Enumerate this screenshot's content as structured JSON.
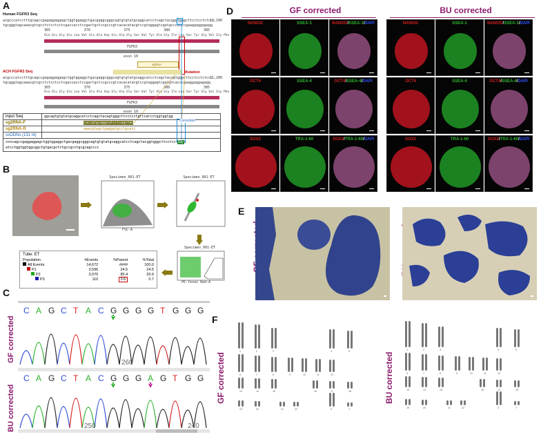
{
  "panels": {
    "A": "A",
    "B": "B",
    "C": "C",
    "D": "D",
    "E": "E",
    "F": "F"
  },
  "panelA": {
    "human_title": "Human FGFR3 Seq",
    "ach_title": "ACH FGFR3 Seq",
    "seq_line1": "acgcccatcctttgcagccgagaggaggagctggtggaggctgacgaggcgggcagtgtgtatgcaggcatcctcagctacgggtgggcttcctcctctccc",
    "seq_line2": "tgcgggtagcaaacgtcgcctctcctcctcgaccacctccgactgctccgcccgtcacacatacgtccgtaggagtcgatgcccacccgaaggaggagagg",
    "seq_line3": "acgcccatcctttgcagccgagaggaggagctggtggaggctgacgaggcgggcagtgtgtatgcaggcatcctcagctacagtgggcttcctcctctccc",
    "seq_line4": "tgcgggtagcaaacgtcgcctctcctcctcgaccacctccgactgctccgcccgtcacacatacgtccgtaggagtcgatgtcacccgaaggaggagagg",
    "aa_line": "Ala Glu Gly Glu Leu Val Glu Ala Asp Glu Ala Gly Ser Val Tyr Ala Gly Ile Leu Ser Tyr Gly Val Gly Phe Phe Leu Phe",
    "pos1": "365",
    "pos2": "370",
    "pos3": "375",
    "pos4": "380",
    "pos5": "385",
    "coord1": "11,100",
    "coord2": "11,200",
    "fgfr3": "FGFR3",
    "exon": "exon 10",
    "mutation": "Mutation",
    "sgrna": "sgRNA",
    "correction": "Correction",
    "table": {
      "rows": [
        {
          "label": "input Seq",
          "value": "ggcagtgtgtatgcaggcatcctcagctacagtgggcttcctcctgttcatcctggtggtgg",
          "color": "#111"
        },
        {
          "label": "sg2RNA-F",
          "value": "caccgtgcaggcatcctcagctac",
          "color": "#8a7a00"
        },
        {
          "label": "sg2RNA-R",
          "value": "aaacgtagctgaggatgcctgcatc",
          "color": "#b8860b"
        },
        {
          "label": "ssODNs (131 nt)",
          "value": "xxxcagccgaggaggagctggtggaggctgacgaggcgggcagtgtgtatgcaggcatcctcagctacggtgggcttcctcctgttc atcctggtggtggcggctgtgacgctctgccgcctgcgcagcccc",
          "color": "#111"
        }
      ],
      "gly": "Gly"
    }
  },
  "panelB": {
    "spec1": "Specimen_001-ET",
    "spec2": "Specimen_001-ET",
    "spec3": "Specimen_001-ET",
    "xaxis1": "FSC-A",
    "yaxis1": "SSC-A",
    "xaxis3": "PE-Texas Red-A",
    "tube": "Tube:  ET",
    "headers": [
      "Population",
      "#Events",
      "%Parent",
      "%Total"
    ],
    "rows": [
      {
        "name": "All Events",
        "events": "14,672",
        "parent": "####",
        "total": "100.0",
        "color": "#000000"
      },
      {
        "name": "P1",
        "events": "3,596",
        "parent": "24.5",
        "total": "24.5",
        "color": "#c00000"
      },
      {
        "name": "P2",
        "events": "3,070",
        "parent": "85.4",
        "total": "20.9",
        "color": "#22aa22"
      },
      {
        "name": "P3",
        "events": "110",
        "parent": "3.6",
        "total": "0.7",
        "color": "#1a1aaa"
      }
    ]
  },
  "panelC": {
    "gf_label": "GF corrected",
    "bu_label": "BU corrected",
    "seq1": [
      "C",
      "A",
      "G",
      "C",
      "T",
      "A",
      "C",
      "G",
      "G",
      "G",
      "G",
      "T",
      "G",
      "G",
      "G"
    ],
    "seq2": [
      "C",
      "A",
      "G",
      "C",
      "T",
      "A",
      "C",
      "G",
      "G",
      "G",
      "A",
      "G",
      "T",
      "G",
      "G"
    ],
    "tick1": "260",
    "tick2a": "250",
    "tick2b": "240"
  },
  "panelD": {
    "gf_header": "GF corrected",
    "bu_header": "BU corrected",
    "rows": [
      {
        "a": "NANOG",
        "b": "SSEA-1",
        "m1": "NANOG",
        "m2": "SSEA-1",
        "m3": "DAPI"
      },
      {
        "a": "OCT4",
        "b": "SSEA-4",
        "m1": "OCT4",
        "m2": "SSEA-4",
        "m3": "DAPI"
      },
      {
        "a": "SOX2",
        "b": "TRA-1-60",
        "m1": "SOX2",
        "m2": "TRA-1-60",
        "m3": "DAPI"
      }
    ]
  },
  "panelE": {
    "gf_label": "GF corrected",
    "bu_label": "BU corrected"
  },
  "panelF": {
    "gf_label": "GF corrected",
    "bu_label": "BU corrected",
    "labels": [
      "1",
      "2",
      "3",
      "4",
      "5",
      "6",
      "7",
      "8",
      "9",
      "10",
      "11",
      "12",
      "13",
      "14",
      "15",
      "16",
      "17",
      "18",
      "19",
      "20",
      "21",
      "22",
      "X",
      "Y"
    ]
  },
  "colors": {
    "red": "#d42020",
    "green": "#2fb82f",
    "magenta": "#c0158b",
    "blue": "#1a1aaa",
    "purple": "#8b1b6d",
    "arrow": "#8a7a14"
  }
}
